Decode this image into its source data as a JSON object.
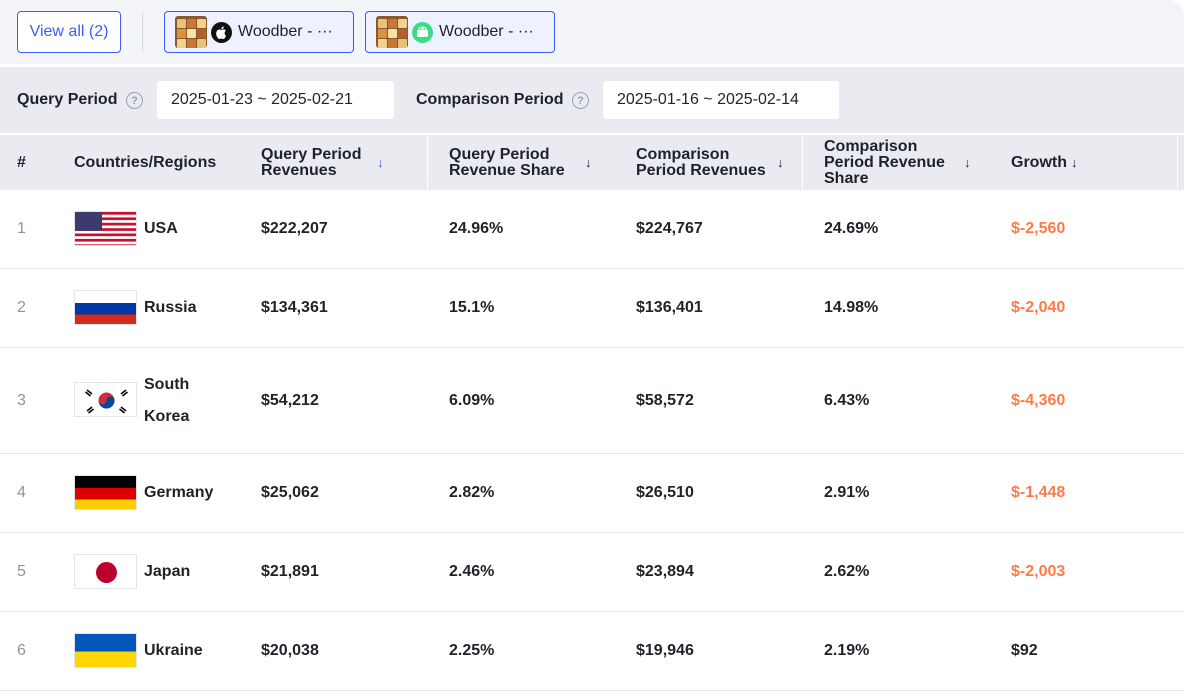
{
  "toolbar": {
    "view_all": "View all (2)",
    "apps": [
      {
        "label": "Woodber - ···",
        "platform": "ios-icon"
      },
      {
        "label": "Woodber - ···",
        "platform": "android-icon"
      }
    ]
  },
  "filters": {
    "query_label": "Query Period",
    "query_range": "2025-01-23 ~ 2025-02-21",
    "comparison_label": "Comparison Period",
    "comparison_range": "2025-01-16 ~ 2025-02-14",
    "help_glyph": "?"
  },
  "table": {
    "headers": {
      "rank": "#",
      "country": "Countries/Regions",
      "query_rev": "Query Period Revenues",
      "query_share": "Query Period Revenue Share",
      "comp_rev": "Comparison Period Revenues",
      "comp_share": "Comparison Period Revenue Share",
      "growth": "Growth"
    },
    "sort_arrow": "↓",
    "rows": [
      {
        "rank": "1",
        "country": "USA",
        "flag": "us-flag",
        "qrev": "$222,207",
        "qshare": "24.96%",
        "crev": "$224,767",
        "cshare": "24.69%",
        "growth": "$-2,560"
      },
      {
        "rank": "2",
        "country": "Russia",
        "flag": "ru-flag",
        "qrev": "$134,361",
        "qshare": "15.1%",
        "crev": "$136,401",
        "cshare": "14.98%",
        "growth": "$-2,040"
      },
      {
        "rank": "3",
        "country": "South Korea",
        "flag": "kr-flag",
        "qrev": "$54,212",
        "qshare": "6.09%",
        "crev": "$58,572",
        "cshare": "6.43%",
        "growth": "$-4,360"
      },
      {
        "rank": "4",
        "country": "Germany",
        "flag": "de-flag",
        "qrev": "$25,062",
        "qshare": "2.82%",
        "crev": "$26,510",
        "cshare": "2.91%",
        "growth": "$-1,448"
      },
      {
        "rank": "5",
        "country": "Japan",
        "flag": "jp-flag",
        "qrev": "$21,891",
        "qshare": "2.46%",
        "crev": "$23,894",
        "cshare": "2.62%",
        "growth": "$-2,003"
      },
      {
        "rank": "6",
        "country": "Ukraine",
        "flag": "ua-flag",
        "qrev": "$20,038",
        "qshare": "2.25%",
        "crev": "$19,946",
        "cshare": "2.19%",
        "growth": "$92"
      }
    ]
  },
  "colors": {
    "accent": "#3d5afe",
    "negative": "#ff7a45",
    "header_bg": "#e9ebf0"
  }
}
